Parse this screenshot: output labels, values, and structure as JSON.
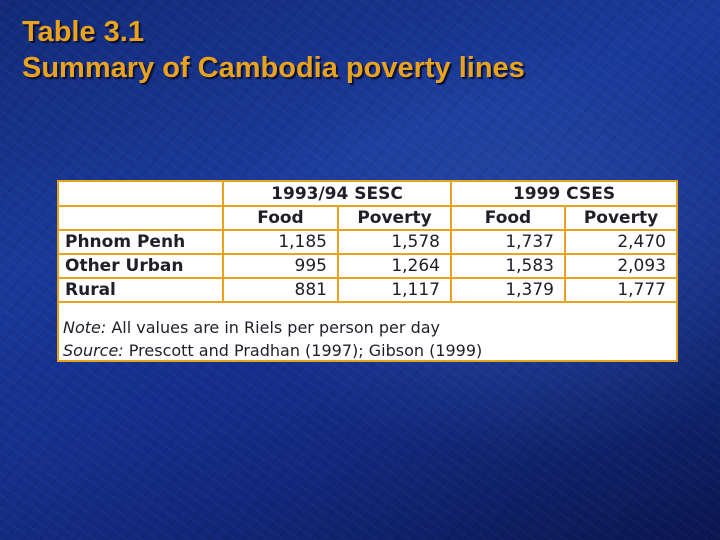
{
  "slide": {
    "title_line1": "Table 3.1",
    "title_line2": "Summary of Cambodia poverty lines"
  },
  "table": {
    "groups": [
      "1993/94 SESC",
      "1999 CSES"
    ],
    "subheaders": [
      "Food",
      "Poverty",
      "Food",
      "Poverty"
    ],
    "rows": [
      {
        "label": "Phnom Penh",
        "values": [
          "1,185",
          "1,578",
          "1,737",
          "2,470"
        ]
      },
      {
        "label": "Other Urban",
        "values": [
          "995",
          "1,264",
          "1,583",
          "2,093"
        ]
      },
      {
        "label": "Rural",
        "values": [
          "881",
          "1,117",
          "1,379",
          "1,777"
        ]
      }
    ]
  },
  "notes": {
    "note_label": "Note:",
    "note_text": " All values are in Riels per person per day",
    "source_label": "Source:",
    "source_text": " Prescott and Pradhan (1997); Gibson (1999)"
  },
  "colors": {
    "accent": "#e8a21c",
    "background": "#1a3a9a",
    "table_background": "#ffffff"
  }
}
